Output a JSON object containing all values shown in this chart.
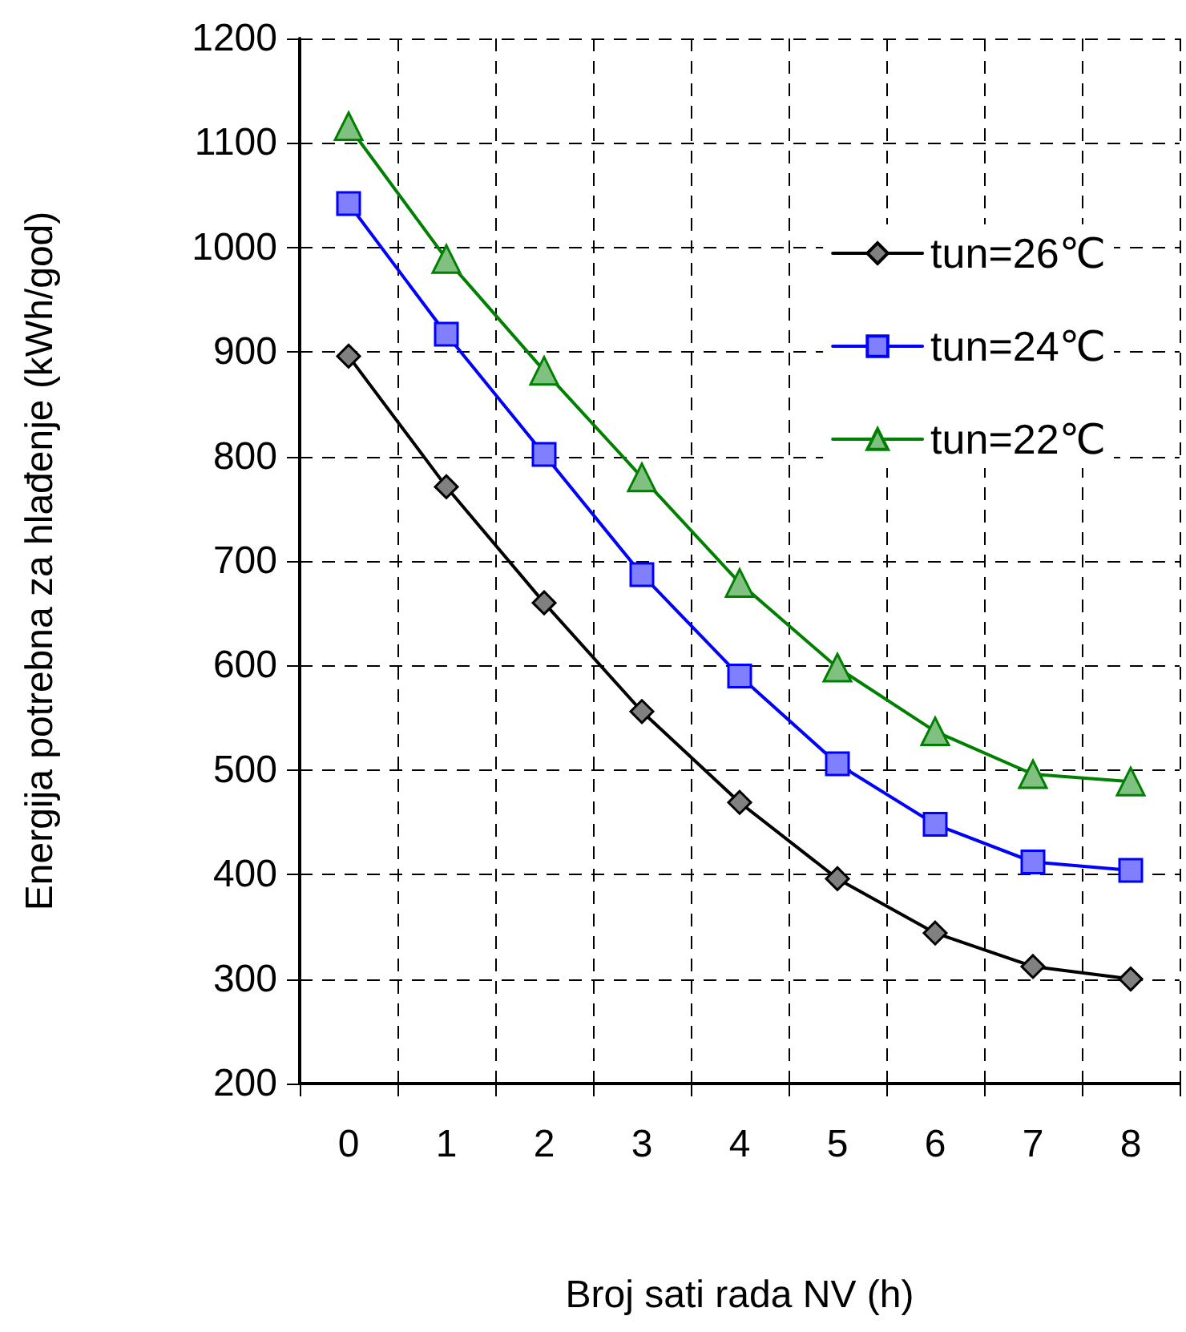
{
  "chart_data": {
    "type": "line",
    "xlabel": "Broj sati rada NV (h)",
    "ylabel": "Energija potrebna za hlađenje (kWh/god)",
    "categories": [
      "0",
      "1",
      "2",
      "3",
      "4",
      "5",
      "6",
      "7",
      "8"
    ],
    "series": [
      {
        "name": "tun=26℃",
        "color": "#000000",
        "marker": "diamond",
        "values": [
          896,
          771,
          660,
          556,
          469,
          396,
          344,
          312,
          300
        ]
      },
      {
        "name": "tun=24℃",
        "color": "#0000ff",
        "marker": "square",
        "values": [
          1042,
          917,
          802,
          687,
          590,
          506,
          448,
          412,
          404
        ]
      },
      {
        "name": "tun=22℃",
        "color": "#008000",
        "marker": "triangle",
        "values": [
          1116,
          989,
          882,
          780,
          679,
          598,
          537,
          496,
          489
        ]
      }
    ],
    "ylim": [
      200,
      1200
    ],
    "yticks": [
      200,
      300,
      400,
      500,
      600,
      700,
      800,
      900,
      1000,
      1100,
      1200
    ],
    "grid": true,
    "legend": "top right",
    "line_style": "solid"
  }
}
